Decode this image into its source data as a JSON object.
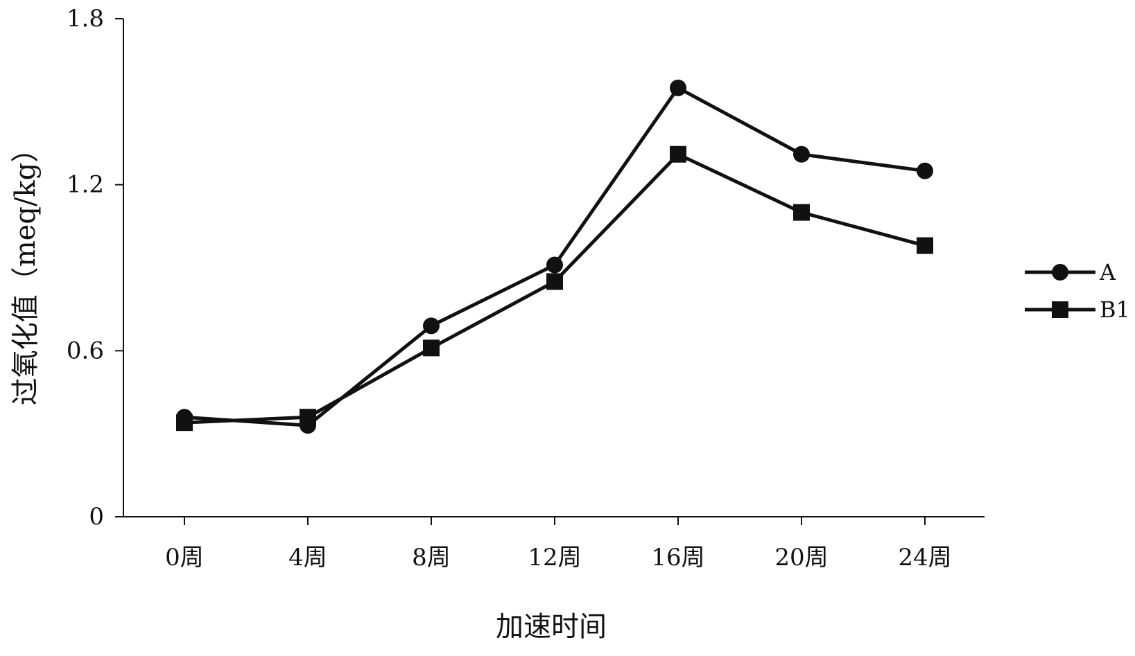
{
  "chart_data": {
    "type": "line",
    "title": "",
    "xlabel": "加速时间",
    "ylabel": "过氧化值（meq/kg）",
    "categories": [
      "0周",
      "4周",
      "8周",
      "12周",
      "16周",
      "20周",
      "24周"
    ],
    "ylim": [
      0,
      1.8
    ],
    "yticks": [
      0,
      0.6,
      1.2,
      1.8
    ],
    "ytick_labels": [
      "0",
      "0.6",
      "1.2",
      "1.8"
    ],
    "grid": false,
    "legend_position": "right",
    "series": [
      {
        "name": "A",
        "marker": "circle",
        "color": "#111111",
        "values": [
          0.36,
          0.33,
          0.69,
          0.91,
          1.55,
          1.31,
          1.25
        ]
      },
      {
        "name": "B1",
        "marker": "square",
        "color": "#111111",
        "values": [
          0.34,
          0.36,
          0.61,
          0.85,
          1.31,
          1.1,
          0.98
        ]
      }
    ]
  }
}
